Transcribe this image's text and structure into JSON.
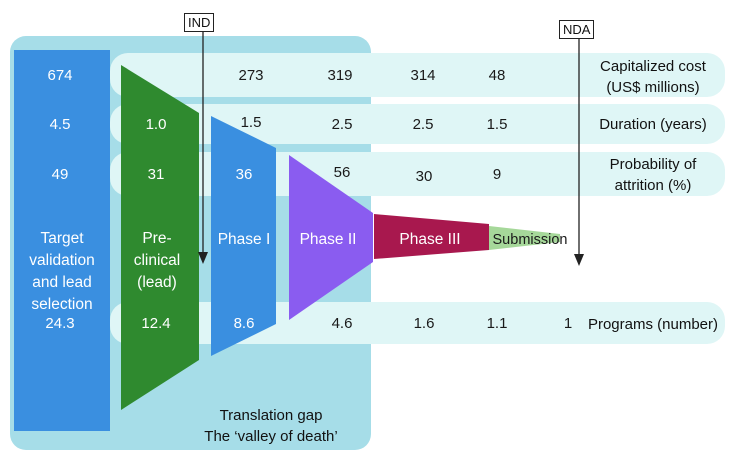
{
  "markers": {
    "ind": "IND",
    "nda": "NDA"
  },
  "row_labels": {
    "cost_line1": "Capitalized cost",
    "cost_line2": "(US$ millions)",
    "duration": "Duration (years)",
    "attrition_line1": "Probability of",
    "attrition_line2": "attrition (%)",
    "programs": "Programs (number)"
  },
  "stages": {
    "target_line1": "Target",
    "target_line2": "validation",
    "target_line3": "and lead",
    "target_line4": "selection",
    "preclinical_line1": "Pre-",
    "preclinical_line2": "clinical",
    "preclinical_line3": "(lead)",
    "phase1": "Phase I",
    "phase2": "Phase II",
    "phase3": "Phase III",
    "submission": "Submission"
  },
  "values": {
    "cost": [
      "674",
      "273",
      "319",
      "314",
      "48"
    ],
    "duration": [
      "4.5",
      "1.0",
      "1.5",
      "2.5",
      "2.5",
      "1.5"
    ],
    "attrition": [
      "49",
      "31",
      "36",
      "56",
      "30",
      "9"
    ],
    "programs": [
      "24.3",
      "12.4",
      "8.6",
      "4.6",
      "1.6",
      "1.1",
      "1"
    ]
  },
  "translation_gap": {
    "line1": "Translation gap",
    "line2": "The ‘valley of death’"
  },
  "colors": {
    "gap_panel": "#a6dde8",
    "row_band": "#dff6f6",
    "target": "#3a8fe0",
    "preclinical": "#2f8a2f",
    "phase1": "#3a8fe0",
    "phase2": "#8a5cf0",
    "phase3": "#a8184e",
    "submission": "#a6d89a"
  }
}
